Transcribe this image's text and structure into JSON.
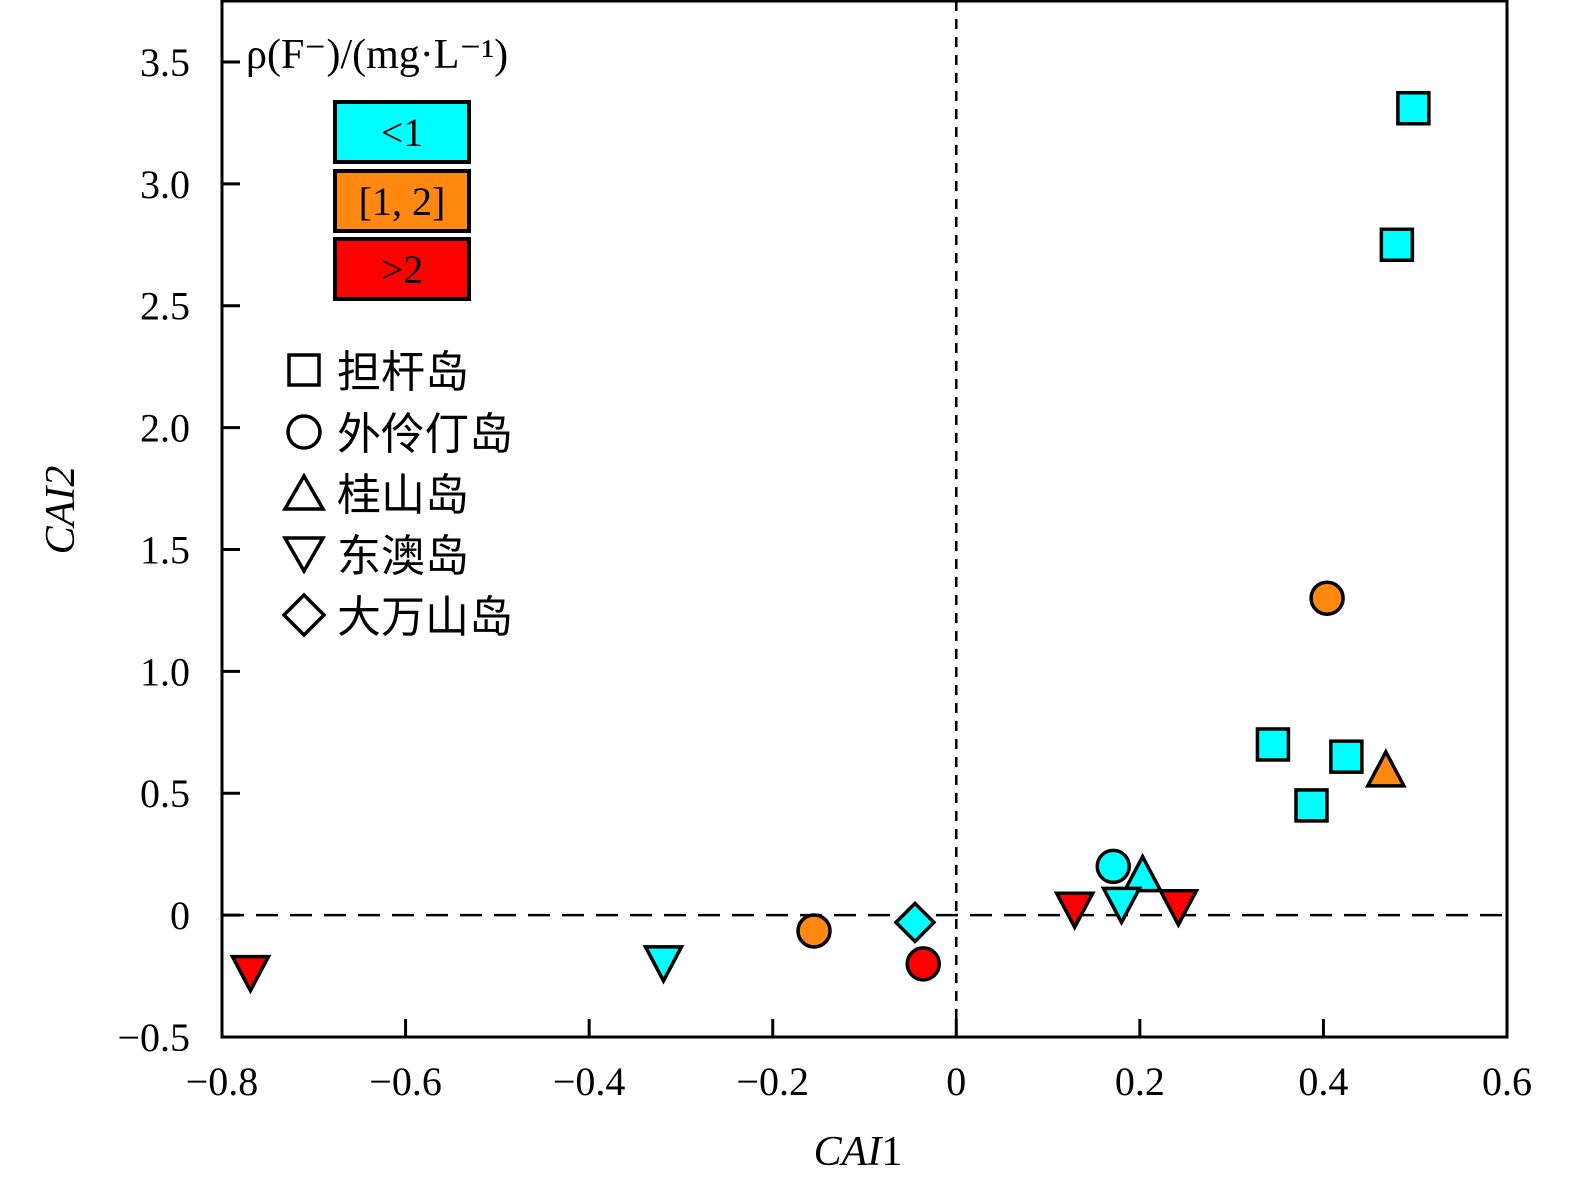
{
  "chart_data": {
    "type": "scatter",
    "title": "",
    "xlabel": {
      "italic": "CAI",
      "plain": "1"
    },
    "ylabel": "CAI2",
    "xlim": [
      -0.8,
      0.6
    ],
    "ylim": [
      -0.5,
      3.75
    ],
    "x_ticks": [
      -0.8,
      -0.6,
      -0.4,
      -0.2,
      0,
      0.2,
      0.4,
      0.6
    ],
    "x_tick_labels": [
      "−0.8",
      "−0.6",
      "−0.4",
      "−0.2",
      "0",
      "0.2",
      "0.4",
      "0.6"
    ],
    "y_ticks": [
      -0.5,
      0,
      0.5,
      1.0,
      1.5,
      2.0,
      2.5,
      3.0,
      3.5
    ],
    "y_tick_labels": [
      "−0.5",
      "0",
      "0.5",
      "1.0",
      "1.5",
      "2.0",
      "2.5",
      "3.0",
      "3.5"
    ],
    "grid": false,
    "reference_lines": [
      {
        "orientation": "vertical",
        "value": 0,
        "style": "dashed"
      },
      {
        "orientation": "horizontal",
        "value": 0,
        "style": "dashed"
      }
    ],
    "color_legend": {
      "title": "ρ(F⁻)/(mg·L⁻¹)",
      "placement": "top-left",
      "classes": [
        {
          "key": "low",
          "label": "<1",
          "color": "#00FFFF"
        },
        {
          "key": "mid",
          "label": "[1, 2]",
          "color": "#FF8811"
        },
        {
          "key": "high",
          "label": ">2",
          "color": "#FF0000"
        }
      ]
    },
    "shape_legend": {
      "placement": "left",
      "entries": [
        {
          "marker": "square",
          "label": "担杆岛"
        },
        {
          "marker": "circle",
          "label": "外伶仃岛"
        },
        {
          "marker": "triangle-up",
          "label": "桂山岛"
        },
        {
          "marker": "triangle-down",
          "label": "东澳岛"
        },
        {
          "marker": "diamond",
          "label": "大万山岛"
        }
      ]
    },
    "points": [
      {
        "island": "担杆岛",
        "marker": "square",
        "fluoride_class": "low",
        "x": 0.498,
        "y": 3.31
      },
      {
        "island": "担杆岛",
        "marker": "square",
        "fluoride_class": "low",
        "x": 0.48,
        "y": 2.75
      },
      {
        "island": "担杆岛",
        "marker": "square",
        "fluoride_class": "low",
        "x": 0.345,
        "y": 0.7
      },
      {
        "island": "担杆岛",
        "marker": "square",
        "fluoride_class": "low",
        "x": 0.425,
        "y": 0.65
      },
      {
        "island": "担杆岛",
        "marker": "square",
        "fluoride_class": "low",
        "x": 0.387,
        "y": 0.45
      },
      {
        "island": "外伶仃岛",
        "marker": "circle",
        "fluoride_class": "mid",
        "x": 0.404,
        "y": 1.3
      },
      {
        "island": "外伶仃岛",
        "marker": "circle",
        "fluoride_class": "low",
        "x": 0.171,
        "y": 0.2
      },
      {
        "island": "外伶仃岛",
        "marker": "circle",
        "fluoride_class": "mid",
        "x": -0.155,
        "y": -0.065
      },
      {
        "island": "外伶仃岛",
        "marker": "circle",
        "fluoride_class": "high",
        "x": -0.036,
        "y": -0.2
      },
      {
        "island": "桂山岛",
        "marker": "triangle-up",
        "fluoride_class": "mid",
        "x": 0.468,
        "y": 0.6
      },
      {
        "island": "桂山岛",
        "marker": "triangle-up",
        "fluoride_class": "low",
        "x": 0.203,
        "y": 0.17
      },
      {
        "island": "东澳岛",
        "marker": "triangle-down",
        "fluoride_class": "low",
        "x": 0.18,
        "y": 0.04
      },
      {
        "island": "东澳岛",
        "marker": "triangle-down",
        "fluoride_class": "high",
        "x": 0.129,
        "y": 0.02
      },
      {
        "island": "东澳岛",
        "marker": "triangle-down",
        "fluoride_class": "high",
        "x": 0.242,
        "y": 0.03
      },
      {
        "island": "东澳岛",
        "marker": "triangle-down",
        "fluoride_class": "low",
        "x": -0.319,
        "y": -0.2
      },
      {
        "island": "东澳岛",
        "marker": "triangle-down",
        "fluoride_class": "high",
        "x": -0.769,
        "y": -0.24
      },
      {
        "island": "大万山岛",
        "marker": "diamond",
        "fluoride_class": "low",
        "x": -0.045,
        "y": -0.03
      }
    ]
  }
}
